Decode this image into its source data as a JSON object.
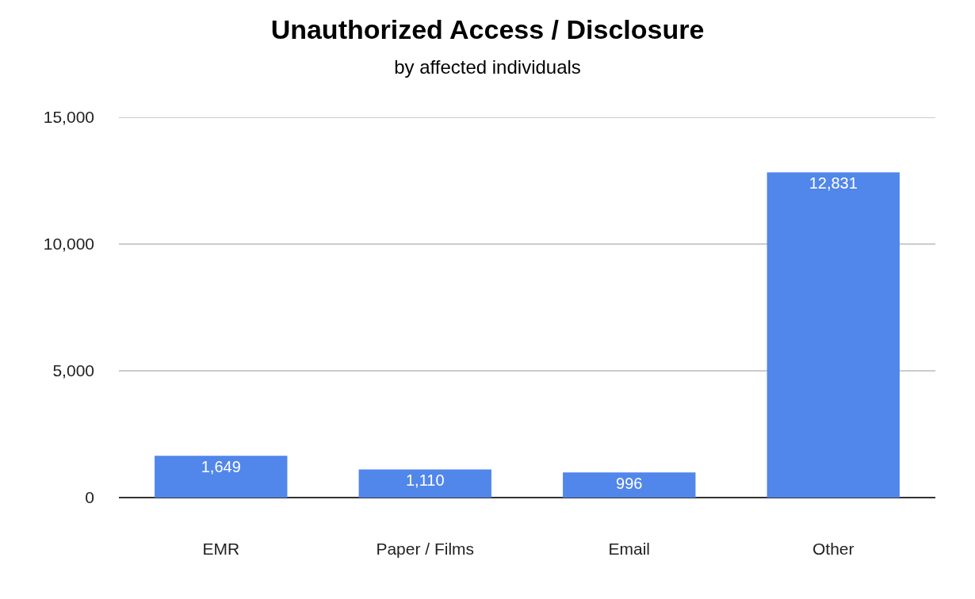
{
  "chart_data": {
    "type": "bar",
    "title": "Unauthorized Access / Disclosure",
    "subtitle": "by affected individuals",
    "categories": [
      "EMR",
      "Paper / Films",
      "Email",
      "Other"
    ],
    "values": [
      1649,
      1110,
      996,
      12831
    ],
    "value_labels": [
      "1,649",
      "1,110",
      "996",
      "12,831"
    ],
    "color": "#5186ea",
    "ylim": [
      0,
      15000
    ],
    "yticks": [
      0,
      {
        "value": 5000,
        "label": "5,000"
      },
      {
        "value": 10000,
        "label": "10,000"
      },
      {
        "value": 15000,
        "label": "15,000"
      }
    ],
    "grid": "y"
  }
}
